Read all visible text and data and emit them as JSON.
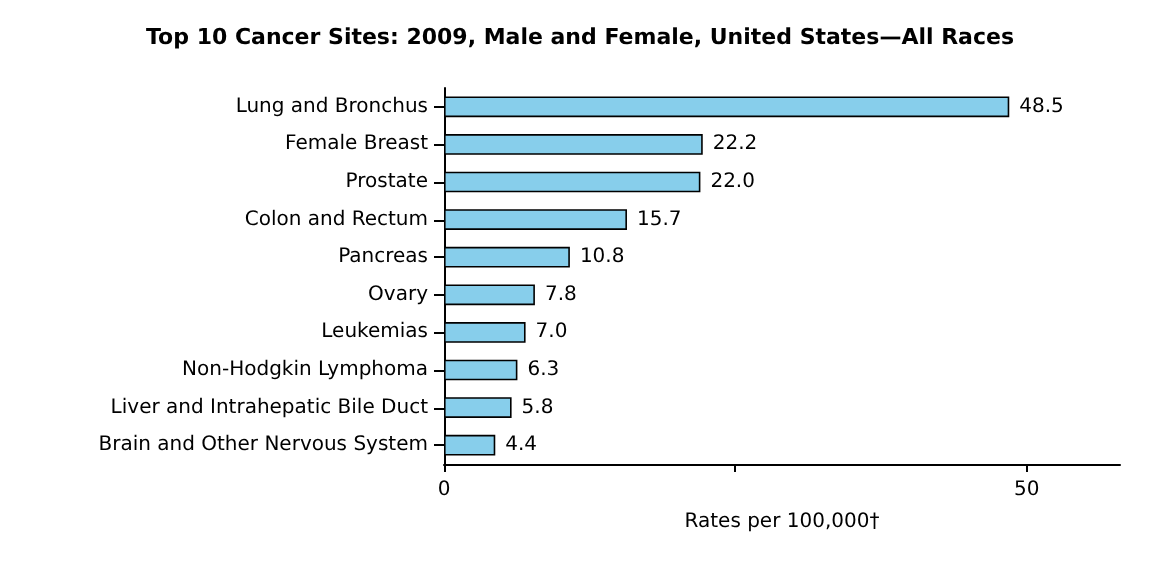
{
  "chart_data": {
    "type": "bar",
    "orientation": "horizontal",
    "title": "Top 10 Cancer Sites: 2009, Male and Female, United States—All Races",
    "xlabel": "Rates per 100,000†",
    "categories": [
      "Lung and Bronchus",
      "Female Breast",
      "Prostate",
      "Colon and Rectum",
      "Pancreas",
      "Ovary",
      "Leukemias",
      "Non-Hodgkin Lymphoma",
      "Liver and Intrahepatic Bile Duct",
      "Brain and Other Nervous System"
    ],
    "values": [
      48.5,
      22.2,
      22.0,
      15.7,
      10.8,
      7.8,
      7.0,
      6.3,
      5.8,
      4.4
    ],
    "value_labels": [
      "48.5",
      "22.2",
      "22.0",
      "15.7",
      "10.8",
      "7.8",
      "7.0",
      "6.3",
      "5.8",
      "4.4"
    ],
    "color": "#87ceeb",
    "xlim": [
      0,
      58
    ],
    "xticks": [
      0,
      {
        "value": 25,
        "label": null
      },
      50
    ]
  }
}
